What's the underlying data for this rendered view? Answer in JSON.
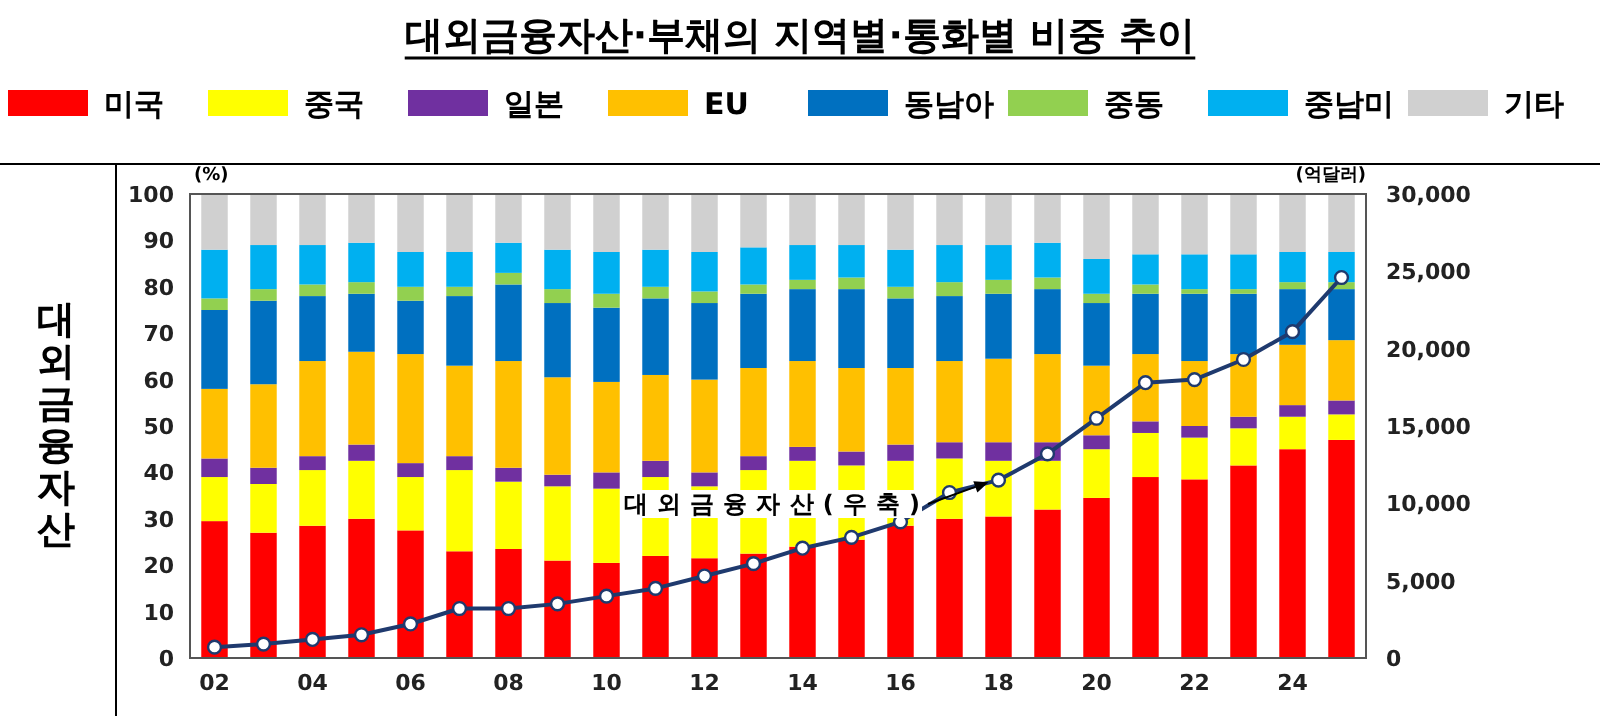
{
  "chart_data": {
    "type": "bar",
    "title": "대외금융자산·부채의 지역별·통화별 비중 추이",
    "ylabel": "(%)",
    "y2label": "(억달러)",
    "annotations": [
      "대외금융자산",
      "대외금융자산(우축)"
    ],
    "categories": [
      "02",
      null,
      "04",
      null,
      "06",
      null,
      "08",
      null,
      "10",
      null,
      "12",
      null,
      "14",
      null,
      "16",
      null,
      "18",
      null,
      "20",
      null,
      "22",
      null,
      "24",
      null
    ],
    "stacked": true,
    "legend": "top",
    "ylim": [
      0,
      100
    ],
    "yticks": [
      0,
      10,
      20,
      30,
      40,
      50,
      60,
      70,
      80,
      90,
      100
    ],
    "y2lim": [
      0,
      30000
    ],
    "y2ticks": [
      0,
      {
        "value": 5000,
        "label": "5,000"
      },
      {
        "value": 10000,
        "label": "10,000"
      },
      {
        "value": 15000,
        "label": "15,000"
      },
      {
        "value": 20000,
        "label": "20,000"
      },
      {
        "value": 25000,
        "label": "25,000"
      },
      {
        "value": 30000,
        "label": "30,000"
      }
    ],
    "series": [
      {
        "name": "미국",
        "color": "#ff0000",
        "values": [
          29.5,
          27,
          28.5,
          30,
          27.5,
          23,
          23.5,
          21,
          20.5,
          22,
          21.5,
          22.5,
          24,
          25.5,
          28.5,
          30,
          30.5,
          32,
          34.5,
          39,
          38.5,
          41.5,
          45,
          47
        ]
      },
      {
        "name": "중국",
        "color": "#ffff00",
        "values": [
          9.5,
          10.5,
          12,
          12.5,
          11.5,
          17.5,
          14.5,
          16,
          16,
          17,
          15.5,
          18,
          18.5,
          16,
          14,
          13,
          12,
          10.5,
          10.5,
          9.5,
          9,
          8,
          7,
          5.5
        ]
      },
      {
        "name": "일본",
        "color": "#7030a0",
        "values": [
          4,
          3.5,
          3,
          3.5,
          3,
          3,
          3,
          2.5,
          3.5,
          3.5,
          3,
          3,
          3,
          3,
          3.5,
          3.5,
          4,
          4,
          3,
          2.5,
          2.5,
          2.5,
          2.5,
          3
        ]
      },
      {
        "name": "EU",
        "color": "#ffc000",
        "values": [
          15,
          18,
          20.5,
          20,
          23.5,
          19.5,
          23,
          21,
          19.5,
          18.5,
          20,
          19,
          18.5,
          18,
          16.5,
          17.5,
          18,
          19,
          15,
          14.5,
          14,
          13.5,
          13,
          13
        ]
      },
      {
        "name": "동남아",
        "color": "#0070c0",
        "values": [
          17,
          18,
          14,
          12.5,
          11.5,
          15,
          16.5,
          16,
          16,
          16.5,
          16.5,
          16,
          15.5,
          17,
          15,
          14,
          14,
          14,
          13.5,
          13,
          14.5,
          13,
          12,
          11
        ]
      },
      {
        "name": "중동",
        "color": "#92d050",
        "values": [
          2.5,
          2.5,
          2.5,
          2.5,
          3,
          2,
          2.5,
          3,
          3,
          2.5,
          2.5,
          2,
          2,
          2.5,
          2.5,
          3,
          3,
          2.5,
          2,
          2,
          1,
          1,
          1.5,
          1.5
        ]
      },
      {
        "name": "중남미",
        "color": "#00b0f0",
        "values": [
          10.5,
          9.5,
          8.5,
          8.5,
          7.5,
          7.5,
          6.5,
          8.5,
          9,
          8,
          8.5,
          8,
          7.5,
          7,
          8,
          8,
          7.5,
          7.5,
          7.5,
          6.5,
          7.5,
          7.5,
          6.5,
          6.5
        ]
      },
      {
        "name": "기타",
        "color": "#d0d0d0",
        "values": [
          12,
          11,
          11,
          10.5,
          12.5,
          12.5,
          10.5,
          12,
          12.5,
          12,
          12.5,
          11.5,
          11,
          11,
          12,
          11,
          11,
          10.5,
          14,
          13,
          13,
          13,
          12.5,
          12.5
        ]
      },
      {
        "type": "line",
        "axis": "y2",
        "color": "#1f3a6e",
        "marker": "circle",
        "values": [
          700,
          900,
          1200,
          1500,
          2200,
          3200,
          3200,
          3500,
          4000,
          4500,
          5300,
          6100,
          7100,
          7800,
          8800,
          10700,
          11500,
          13200,
          15500,
          17800,
          18000,
          19300,
          21100,
          24600
        ]
      }
    ]
  }
}
